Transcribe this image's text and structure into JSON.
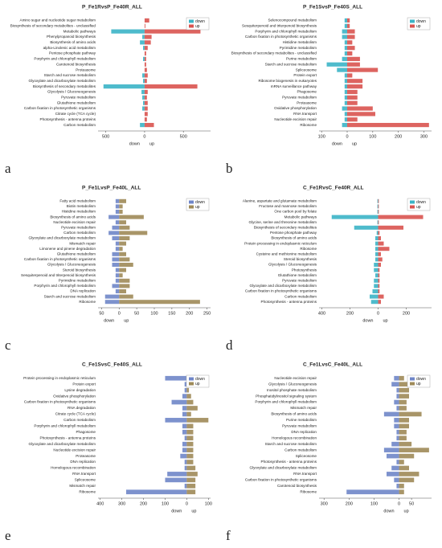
{
  "chart_data": [
    {
      "type": "diverging-bar",
      "title": "P_Fe1RvsP_Fe40R_ALL",
      "panel_label": "a",
      "legend": "top-right",
      "x_axis_labels": [
        "down",
        "up"
      ],
      "categories": [
        "Amino sugar and nucleotide sugar metabolism",
        "Biosynthesis of secondary metabolites - unclassified",
        "Metabolic pathways",
        "Phenylpropanoid biosynthesis",
        "Biosynthesis of amino acids",
        "alpha-Linolenic acid metabolism",
        "Pentose phosphate pathway",
        "Porphyrin and chlorophyll metabolism",
        "Carotenoid biosynthesis",
        "Proteasome",
        "Starch and sucrose metabolism",
        "Glyoxylate and dicarboxylate metabolism",
        "Biosynthesis of secondary metabolites",
        "Glycolysis / Gluconeogenesis",
        "Pyruvate metabolism",
        "Glutathione metabolism",
        "Carbon fixation in photosynthetic organisms",
        "Citrate cycle (TCA cycle)",
        "Photosynthesis - antenna proteins",
        "Carbon metabolism"
      ],
      "series": [
        {
          "name": "down",
          "color": "#3bb4c6",
          "values": [
            0,
            0,
            -430,
            -30,
            -60,
            -20,
            0,
            -20,
            0,
            0,
            -30,
            -20,
            -530,
            -40,
            -30,
            -20,
            -30,
            0,
            0,
            -60
          ]
        },
        {
          "name": "up",
          "color": "#d9534f",
          "values": [
            60,
            10,
            720,
            90,
            80,
            40,
            20,
            20,
            20,
            30,
            40,
            30,
            680,
            40,
            30,
            40,
            40,
            40,
            30,
            120
          ]
        }
      ],
      "xlim": [
        -600,
        850
      ],
      "xticks": [
        {
          "value": -500,
          "label": "500"
        },
        0,
        500
      ]
    },
    {
      "type": "diverging-bar",
      "title": "P_Fe1SvsP_Fe40S_ALL",
      "panel_label": "b",
      "legend": "top-right",
      "x_axis_labels": [
        "down",
        "up"
      ],
      "categories": [
        "Selenocompound metabolism",
        "Sesquiterpenoid and triterpenoid biosynthesis",
        "Porphyrin and chlorophyll metabolism",
        "Carbon fixation in photosynthetic organisms",
        "Histidine metabolism",
        "Pyrimidine metabolism",
        "Biosynthesis of secondary metabolites - unclassified",
        "Purine metabolism",
        "Starch and sucrose metabolism",
        "Spliceosome",
        "Protein export",
        "Ribosome biogenesis in eukaryotes",
        "mRNA surveillance pathway",
        "Phagosome",
        "Pyruvate metabolism",
        "Proteasome",
        "Oxidative phosphorylation",
        "RNA transport",
        "Nucleotide excision repair",
        "Ribosome"
      ],
      "series": [
        {
          "name": "down",
          "color": "#3bb4c6",
          "values": [
            -10,
            -10,
            -20,
            -20,
            -10,
            -10,
            -10,
            -20,
            -80,
            -40,
            -10,
            -10,
            -10,
            -10,
            -10,
            -10,
            -20,
            -10,
            -10,
            -20
          ]
        },
        {
          "name": "up",
          "color": "#d9534f",
          "values": [
            10,
            10,
            30,
            30,
            20,
            30,
            20,
            50,
            50,
            120,
            20,
            60,
            60,
            40,
            40,
            40,
            100,
            110,
            40,
            320
          ]
        }
      ],
      "xlim": [
        -110,
        330
      ],
      "xticks": [
        {
          "value": -100,
          "label": "100"
        },
        0,
        100,
        200,
        300
      ]
    },
    {
      "type": "diverging-bar",
      "title": "P_Fe1LvsP_Fe40L_ALL",
      "panel_label": "c",
      "legend": "top-right",
      "x_axis_labels": [
        "down",
        "up"
      ],
      "categories": [
        "Fatty acid metabolism",
        "Biotin metabolism",
        "Histidine metabolism",
        "Biosynthesis of amino acids",
        "Nucleotide excision repair",
        "Pyruvate metabolism",
        "Carbon metabolism",
        "Glyoxylate and dicarboxylate metabolism",
        "Mismatch repair",
        "Limonene and pinene degradation",
        "Glutathione metabolism",
        "Carbon fixation in photosynthetic organisms",
        "Glycolysis / Gluconeogenesis",
        "Steroid biosynthesis",
        "Sesquiterpenoid and triterpenoid biosynthesis",
        "Pyrimidine metabolism",
        "Porphyrin and chlorophyll metabolism",
        "DNA replication",
        "Starch and sucrose metabolism",
        "Ribosome"
      ],
      "series": [
        {
          "name": "down",
          "color": "#6f86c8",
          "values": [
            -10,
            -10,
            -10,
            -30,
            -10,
            -20,
            -30,
            -20,
            -10,
            -10,
            -20,
            -20,
            -20,
            -10,
            -10,
            -10,
            -20,
            -10,
            -40,
            -40
          ]
        },
        {
          "name": "up",
          "color": "#9e8a58",
          "values": [
            20,
            10,
            10,
            70,
            20,
            30,
            80,
            30,
            20,
            10,
            20,
            30,
            40,
            20,
            10,
            30,
            30,
            20,
            40,
            230
          ]
        }
      ],
      "xlim": [
        -60,
        260
      ],
      "xticks": [
        {
          "value": -50,
          "label": "50"
        },
        0,
        50,
        100,
        150,
        200,
        250
      ]
    },
    {
      "type": "diverging-bar",
      "title": "C_Fe1RvsC_Fe40R_ALL",
      "panel_label": "d",
      "legend": "top-right",
      "x_axis_labels": [
        "down",
        "up"
      ],
      "categories": [
        "Alanine, aspartate and glutamate metabolism",
        "Fructose and mannose metabolism",
        "One carbon pool by folate",
        "Metabolic pathways",
        "Glycine, serine and threonine metabolism",
        "Biosynthesis of secondary metabolites",
        "Pentose phosphate pathway",
        "Biosynthesis of amino acids",
        "Protein processing in endoplasmic reticulum",
        "Ribosome",
        "Cysteine and methionine metabolism",
        "Steroid biosynthesis",
        "Glycolysis / Gluconeogenesis",
        "Photosynthesis",
        "Glutathione metabolism",
        "Pyruvate metabolism",
        "Glyoxylate and dicarboxylate metabolism",
        "Carbon fixation in photosynthetic organisms",
        "Carbon metabolism",
        "Photosynthesis - antenna proteins"
      ],
      "series": [
        {
          "name": "down",
          "color": "#3bb4c6",
          "values": [
            -5,
            -5,
            -5,
            -330,
            -5,
            -170,
            -10,
            -20,
            -20,
            -20,
            -20,
            -20,
            -30,
            -30,
            -20,
            -30,
            -30,
            -40,
            -60,
            -50
          ]
        },
        {
          "name": "up",
          "color": "#d9534f",
          "values": [
            5,
            5,
            5,
            320,
            5,
            180,
            10,
            20,
            40,
            80,
            20,
            30,
            20,
            10,
            10,
            10,
            10,
            10,
            40,
            20
          ]
        }
      ],
      "xlim": [
        -420,
        380
      ],
      "xticks": [
        {
          "value": -400,
          "label": "400"
        },
        {
          "value": -200,
          "label": "200"
        },
        0,
        200
      ]
    },
    {
      "type": "diverging-bar",
      "title": "C_Fe1SvsC_Fe40S_ALL",
      "panel_label": "e",
      "legend": "top-right",
      "x_axis_labels": [
        "down",
        "up"
      ],
      "categories": [
        "Protein processing in endoplasmic reticulum",
        "Protein export",
        "Lysine degradation",
        "Oxidative phosphorylation",
        "Carbon fixation in photosynthetic organisms",
        "RNA degradation",
        "Citrate cycle (TCA cycle)",
        "Carbon metabolism",
        "Porphyrin and chlorophyll metabolism",
        "Phagosome",
        "Photosynthesis - antenna proteins",
        "Glyoxylate and dicarboxylate metabolism",
        "Nucleotide excision repair",
        "Proteasome",
        "DNA replication",
        "Homologous recombination",
        "RNA transport",
        "Spliceosome",
        "Mismatch repair",
        "Ribosome"
      ],
      "series": [
        {
          "name": "down",
          "color": "#6f86c8",
          "values": [
            -100,
            -10,
            -10,
            -20,
            -70,
            -20,
            -20,
            -100,
            -20,
            -20,
            -10,
            -20,
            -20,
            -30,
            -10,
            -10,
            -90,
            -100,
            -10,
            -280
          ]
        },
        {
          "name": "up",
          "color": "#9e8a58",
          "values": [
            30,
            10,
            10,
            20,
            30,
            50,
            20,
            100,
            30,
            30,
            30,
            30,
            30,
            30,
            30,
            40,
            50,
            40,
            40,
            40
          ]
        }
      ],
      "xlim": [
        -410,
        110
      ],
      "xticks": [
        {
          "value": -400,
          "label": "400"
        },
        {
          "value": -300,
          "label": "300"
        },
        {
          "value": -200,
          "label": "200"
        },
        {
          "value": -100,
          "label": "100"
        },
        0,
        100
      ]
    },
    {
      "type": "diverging-bar",
      "title": "C_Fe1LvsC_Fe40L_ALL",
      "panel_label": "f",
      "legend": "top-right",
      "x_axis_labels": [
        "down",
        "up"
      ],
      "categories": [
        "Nucleotide excision repair",
        "Glycolysis / Gluconeogenesis",
        "Inositol phosphate metabolism",
        "Phosphatidylinositol signaling system",
        "Porphyrin and chlorophyll metabolism",
        "Mismatch repair",
        "Biosynthesis of amino acids",
        "Purine metabolism",
        "Pyruvate metabolism",
        "DNA replication",
        "Homologous recombination",
        "Starch and sucrose metabolism",
        "Carbon metabolism",
        "Spliceosome",
        "Photosynthesis - antenna proteins",
        "Glyoxylate and dicarboxylate metabolism",
        "RNA transport",
        "Carbon fixation in photosynthetic organisms",
        "Carotenoid biosynthesis",
        "Ribosome"
      ],
      "series": [
        {
          "name": "down",
          "color": "#6f86c8",
          "values": [
            -20,
            -30,
            -10,
            -10,
            -20,
            -10,
            -60,
            -20,
            -20,
            -10,
            -10,
            -30,
            -60,
            -50,
            -10,
            -30,
            -50,
            -20,
            -10,
            -210
          ]
        },
        {
          "name": "up",
          "color": "#9e8a58",
          "values": [
            20,
            50,
            40,
            40,
            30,
            30,
            90,
            40,
            40,
            30,
            30,
            50,
            120,
            60,
            20,
            40,
            80,
            60,
            20,
            20
          ]
        }
      ],
      "xlim": [
        -320,
        130
      ],
      "xticks": [
        {
          "value": -300,
          "label": "300"
        },
        {
          "value": -200,
          "label": "200"
        },
        {
          "value": -100,
          "label": "100"
        },
        0,
        50
      ]
    }
  ]
}
